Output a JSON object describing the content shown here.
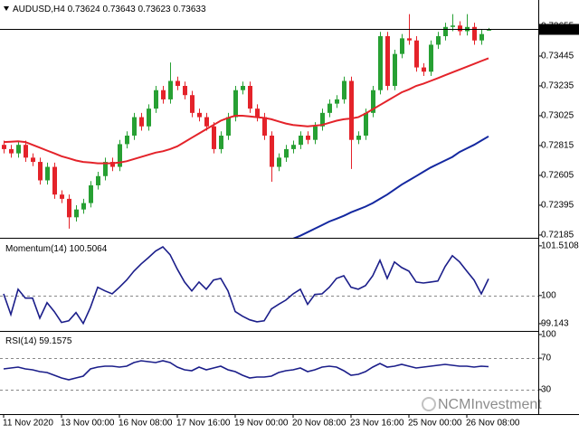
{
  "watermark": "NCMInvestment",
  "chart_data": [
    {
      "type": "candlestick",
      "title": "AUDUSD,H4",
      "categories": [
        "11 Nov 2020",
        null,
        null,
        null,
        null,
        null,
        null,
        null,
        "13 Nov 00:00",
        null,
        null,
        null,
        null,
        null,
        null,
        null,
        "16 Nov 08:00",
        null,
        null,
        null,
        null,
        null,
        null,
        null,
        "17 Nov 16:00",
        null,
        null,
        null,
        null,
        null,
        null,
        null,
        "19 Nov 00:00",
        null,
        null,
        null,
        null,
        null,
        null,
        null,
        "20 Nov 08:00",
        null,
        null,
        null,
        null,
        null,
        null,
        null,
        "23 Nov 16:00",
        null,
        null,
        null,
        null,
        null,
        null,
        null,
        "25 Nov 00:00",
        null,
        null,
        null,
        null,
        null,
        null,
        null,
        "26 Nov 08:00",
        null,
        null,
        null
      ],
      "open": [
        0.7282,
        0.7279,
        0.7276,
        0.7282,
        0.7273,
        0.727,
        0.7257,
        0.72665,
        0.7247,
        0.7244,
        0.7231,
        0.72365,
        0.7241,
        0.72535,
        0.726,
        0.727,
        0.72665,
        0.72825,
        0.72885,
        0.73015,
        0.7295,
        0.73075,
        0.73205,
        0.7314,
        0.7327,
        0.73235,
        0.7317,
        0.73045,
        0.73015,
        0.7295,
        0.7279,
        0.72885,
        0.73015,
        0.73205,
        0.73235,
        0.73075,
        0.73015,
        0.72885,
        0.72665,
        0.7273,
        0.7279,
        0.7282,
        0.72885,
        0.72855,
        0.7295,
        0.73045,
        0.7311,
        0.7314,
        0.7327,
        0.72855,
        0.72885,
        0.73045,
        0.73205,
        0.73585,
        0.73235,
        0.7346,
        0.7357,
        0.73555,
        0.73365,
        0.73335,
        0.73525,
        0.73585,
        0.7365,
        0.7366,
        0.7362,
        0.7365,
        0.73555,
        0.73624
      ],
      "high": [
        0.7285,
        0.7282,
        0.7285,
        0.7285,
        0.7276,
        0.7273,
        0.72695,
        0.72695,
        0.725,
        0.7247,
        0.72395,
        0.7244,
        0.72565,
        0.7263,
        0.7273,
        0.7273,
        0.72855,
        0.72915,
        0.73045,
        0.73045,
        0.73105,
        0.73235,
        0.73235,
        0.734,
        0.733,
        0.73265,
        0.732,
        0.73075,
        0.73045,
        0.7298,
        0.72915,
        0.73045,
        0.73235,
        0.73265,
        0.73265,
        0.73105,
        0.73045,
        0.72915,
        0.7276,
        0.7282,
        0.7285,
        0.72915,
        0.72915,
        0.7298,
        0.73075,
        0.7314,
        0.7317,
        0.733,
        0.733,
        0.72915,
        0.73075,
        0.73235,
        0.73615,
        0.73615,
        0.7349,
        0.736,
        0.7374,
        0.73585,
        0.73395,
        0.73555,
        0.73615,
        0.7368,
        0.7374,
        0.7369,
        0.7374,
        0.7368,
        0.7363,
        0.73643
      ],
      "low": [
        0.7276,
        0.7273,
        0.7273,
        0.727,
        0.7267,
        0.7254,
        0.7254,
        0.7244,
        0.7241,
        0.7223,
        0.7228,
        0.72335,
        0.7238,
        0.72505,
        0.7257,
        0.72635,
        0.72635,
        0.72795,
        0.72855,
        0.7292,
        0.7292,
        0.73045,
        0.7311,
        0.7311,
        0.73205,
        0.7314,
        0.73015,
        0.72985,
        0.7292,
        0.7276,
        0.7276,
        0.72855,
        0.72985,
        0.73175,
        0.73045,
        0.72985,
        0.72855,
        0.7256,
        0.72635,
        0.727,
        0.7276,
        0.7279,
        0.72825,
        0.72825,
        0.7292,
        0.73015,
        0.7308,
        0.7311,
        0.7265,
        0.72825,
        0.72855,
        0.73015,
        0.73175,
        0.73205,
        0.73205,
        0.7343,
        0.73525,
        0.73335,
        0.73305,
        0.73305,
        0.73495,
        0.73555,
        0.7362,
        0.7359,
        0.7359,
        0.73525,
        0.73525,
        0.73623
      ],
      "close": [
        0.7279,
        0.7276,
        0.7282,
        0.7273,
        0.727,
        0.7257,
        0.72665,
        0.7247,
        0.7244,
        0.7231,
        0.72365,
        0.7241,
        0.72535,
        0.726,
        0.727,
        0.72665,
        0.72825,
        0.72885,
        0.73015,
        0.7295,
        0.73075,
        0.73205,
        0.7314,
        0.7327,
        0.73235,
        0.7317,
        0.73045,
        0.73015,
        0.7295,
        0.7279,
        0.72885,
        0.73015,
        0.73205,
        0.73235,
        0.73075,
        0.73015,
        0.72885,
        0.72665,
        0.7273,
        0.7279,
        0.7282,
        0.72885,
        0.72855,
        0.7295,
        0.73045,
        0.7311,
        0.7314,
        0.7327,
        0.72855,
        0.72885,
        0.73045,
        0.73205,
        0.73585,
        0.73235,
        0.7346,
        0.7357,
        0.73555,
        0.73365,
        0.73335,
        0.73525,
        0.73585,
        0.7365,
        0.7366,
        0.7362,
        0.7365,
        0.73555,
        0.736,
        0.73633
      ],
      "up_color": "#27a033",
      "down_color": "#e4232a",
      "series": [
        {
          "color": "#e4232a",
          "values": [
            0.7284,
            0.72842,
            0.72845,
            0.7284,
            0.7282,
            0.728,
            0.7278,
            0.7276,
            0.7274,
            0.72725,
            0.7271,
            0.727,
            0.72695,
            0.7269,
            0.7269,
            0.7269,
            0.72695,
            0.72705,
            0.7272,
            0.72735,
            0.7275,
            0.72765,
            0.72775,
            0.7279,
            0.7281,
            0.7284,
            0.7287,
            0.729,
            0.7293,
            0.7296,
            0.7299,
            0.7301,
            0.73025,
            0.73025,
            0.7302,
            0.73015,
            0.7301,
            0.73,
            0.72985,
            0.7297,
            0.7296,
            0.72955,
            0.7295,
            0.72955,
            0.7296,
            0.72975,
            0.7299,
            0.73,
            0.73005,
            0.73015,
            0.7304,
            0.7307,
            0.731,
            0.7313,
            0.7316,
            0.7319,
            0.7321,
            0.73235,
            0.7325,
            0.7327,
            0.7329,
            0.7331,
            0.7333,
            0.7335,
            0.7337,
            0.7339,
            0.7341,
            0.7343
          ]
        },
        {
          "color": "#1428a0",
          "values": [
            null,
            null,
            null,
            null,
            null,
            null,
            null,
            null,
            null,
            null,
            null,
            null,
            null,
            null,
            null,
            null,
            null,
            null,
            null,
            null,
            null,
            null,
            null,
            null,
            null,
            null,
            null,
            null,
            null,
            null,
            null,
            null,
            null,
            null,
            null,
            null,
            null,
            null,
            null,
            null,
            0.7216,
            0.7218,
            0.72205,
            0.7223,
            0.72255,
            0.7228,
            0.723,
            0.7232,
            0.72345,
            0.72365,
            0.72385,
            0.7241,
            0.7244,
            0.7247,
            0.72505,
            0.7254,
            0.7257,
            0.726,
            0.7263,
            0.7266,
            0.72685,
            0.7271,
            0.72735,
            0.7277,
            0.72795,
            0.7282,
            0.7285,
            0.7288
          ]
        }
      ],
      "ylim": [
        0.72172,
        0.73827
      ],
      "yticks": [
        0.73655,
        0.73445,
        0.73235,
        0.73025,
        0.72815,
        0.72605,
        0.72395,
        0.72185
      ],
      "last_price_line": true
    },
    {
      "type": "line",
      "series": [
        {
          "name": "Momentum(14)",
          "color": "#1b1e8a",
          "values": [
            100.05,
            99.42,
            100.19,
            99.92,
            99.92,
            99.31,
            99.78,
            99.51,
            99.18,
            99.23,
            99.48,
            99.15,
            99.64,
            100.25,
            100.14,
            100.05,
            100.25,
            100.47,
            100.74,
            100.96,
            101.15,
            101.35,
            101.48,
            101.24,
            100.8,
            100.41,
            100.14,
            100.41,
            100.19,
            100.47,
            100.52,
            100.14,
            99.51,
            99.37,
            99.26,
            99.2,
            99.23,
            99.59,
            99.73,
            99.86,
            100.05,
            100.19,
            99.73,
            100.03,
            100.05,
            100.25,
            100.52,
            100.6,
            100.25,
            100.19,
            100.3,
            100.6,
            101.07,
            100.52,
            101.02,
            100.85,
            100.74,
            100.41,
            100.38,
            100.41,
            100.44,
            100.88,
            101.21,
            101.02,
            100.74,
            100.47,
            100.05,
            100.5064
          ]
        }
      ],
      "ylim": [
        98.95,
        101.7
      ],
      "yticks": [
        101.5108,
        100,
        99.143
      ],
      "levels": [
        100
      ]
    },
    {
      "type": "line",
      "series": [
        {
          "name": "RSI(14)",
          "color": "#1b1e8a",
          "values": [
            56.3,
            57.5,
            58.6,
            56.3,
            55.2,
            52.9,
            51.7,
            48.3,
            44.8,
            42.5,
            44.8,
            47.1,
            56.3,
            58.6,
            59.8,
            59.8,
            58.6,
            59.8,
            64.4,
            66.7,
            65.5,
            64.4,
            66.7,
            64.4,
            58.6,
            55.2,
            54.0,
            58.6,
            55.2,
            57.5,
            59.8,
            55.2,
            52.9,
            48.3,
            44.8,
            46.0,
            46.0,
            47.1,
            51.7,
            54.0,
            55.2,
            57.5,
            52.9,
            55.2,
            58.6,
            59.8,
            58.6,
            54.0,
            48.3,
            49.4,
            52.9,
            58.6,
            63.2,
            58.6,
            59.8,
            62.1,
            59.8,
            57.5,
            58.6,
            59.8,
            60.9,
            62.1,
            60.9,
            59.8,
            59.8,
            58.6,
            59.8,
            59.1575
          ]
        }
      ],
      "ylim": [
        0,
        100
      ],
      "yticks": [
        100,
        70,
        30
      ],
      "levels": [
        70,
        30
      ]
    }
  ]
}
